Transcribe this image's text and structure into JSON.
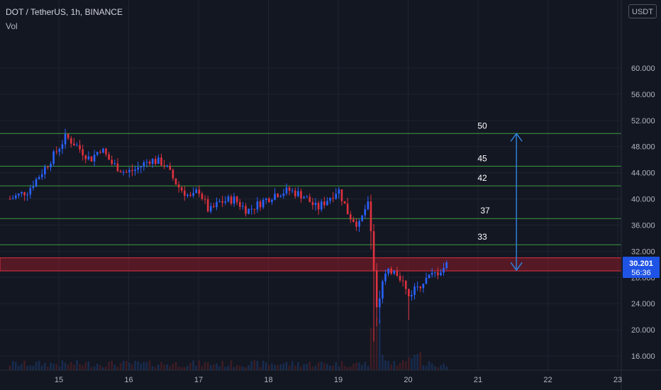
{
  "header": {
    "symbol_line": "DOT / TetherUS, 1h, BINANCE",
    "indicator": "Vol"
  },
  "currency_button": "USDT",
  "price_tag": {
    "price": "30.201",
    "countdown": "56:36"
  },
  "colors": {
    "background": "#131722",
    "grid": "#1f2330",
    "up": "#2962ff",
    "down": "#e0313f",
    "level_line": "#3c9b3c",
    "zone_fill": "#8a1c28",
    "zone_border": "#e0313f",
    "arrow": "#2f7ed8",
    "axis_text": "#b2b5be",
    "price_tag_bg": "#1e53e5"
  },
  "chart_data": {
    "type": "candlestick",
    "x_axis": {
      "min": 14.3,
      "max": 23.0,
      "tick_labels": [
        "15",
        "16",
        "17",
        "18",
        "19",
        "20",
        "21",
        "22",
        "23"
      ]
    },
    "y_axis": {
      "min": 15.0,
      "max": 60.0,
      "tick_labels": [
        "16.000",
        "20.000",
        "24.000",
        "28.000",
        "32.000",
        "36.000",
        "40.000",
        "44.000",
        "48.000",
        "52.000",
        "56.000",
        "60.000"
      ]
    },
    "horizontal_levels": [
      {
        "label": "50",
        "price": 50
      },
      {
        "label": "45",
        "price": 45
      },
      {
        "label": "42",
        "price": 42
      },
      {
        "label": "37",
        "price": 37
      },
      {
        "label": "33",
        "price": 33
      }
    ],
    "support_zone": {
      "low": 29.0,
      "high": 31.0
    },
    "arrow": {
      "x": 21.55,
      "from": 50,
      "to": 29.1
    },
    "price_path": [
      [
        14.3,
        40.0
      ],
      [
        14.55,
        41.2
      ],
      [
        14.75,
        44.0
      ],
      [
        14.95,
        47.0
      ],
      [
        15.1,
        49.5
      ],
      [
        15.25,
        48.2
      ],
      [
        15.45,
        46.0
      ],
      [
        15.6,
        47.8
      ],
      [
        15.75,
        45.5
      ],
      [
        15.95,
        44.0
      ],
      [
        16.1,
        44.5
      ],
      [
        16.3,
        46.0
      ],
      [
        16.5,
        45.5
      ],
      [
        16.7,
        42.0
      ],
      [
        16.9,
        40.0
      ],
      [
        17.0,
        41.5
      ],
      [
        17.15,
        38.0
      ],
      [
        17.3,
        39.5
      ],
      [
        17.5,
        40.0
      ],
      [
        17.7,
        38.2
      ],
      [
        17.9,
        39.5
      ],
      [
        18.1,
        40.8
      ],
      [
        18.3,
        41.3
      ],
      [
        18.5,
        40.5
      ],
      [
        18.7,
        38.5
      ],
      [
        18.9,
        40.5
      ],
      [
        19.0,
        41.5
      ],
      [
        19.15,
        37.5
      ],
      [
        19.3,
        36.0
      ],
      [
        19.42,
        39.5
      ],
      [
        19.5,
        31.0
      ],
      [
        19.55,
        24.0
      ],
      [
        19.65,
        28.0
      ],
      [
        19.8,
        29.5
      ],
      [
        19.92,
        27.5
      ],
      [
        20.0,
        25.0
      ],
      [
        20.1,
        26.5
      ],
      [
        20.3,
        28.0
      ],
      [
        20.45,
        29.0
      ],
      [
        20.58,
        30.2
      ]
    ]
  }
}
